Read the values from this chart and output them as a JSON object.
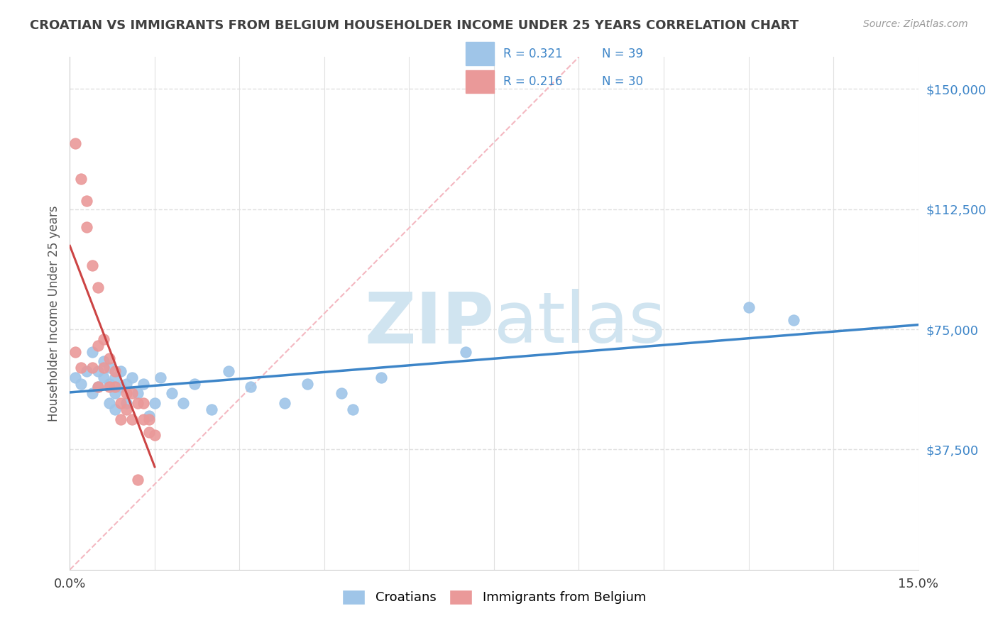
{
  "title": "CROATIAN VS IMMIGRANTS FROM BELGIUM HOUSEHOLDER INCOME UNDER 25 YEARS CORRELATION CHART",
  "source": "Source: ZipAtlas.com",
  "ylabel": "Householder Income Under 25 years",
  "xmin": 0.0,
  "xmax": 0.15,
  "ymin": 0,
  "ymax": 160000,
  "ytick_vals": [
    37500,
    75000,
    112500,
    150000
  ],
  "ytick_labels": [
    "$37,500",
    "$75,000",
    "$112,500",
    "$150,000"
  ],
  "croatian_R": "0.321",
  "croatian_N": "39",
  "belgium_R": "0.216",
  "belgium_N": "30",
  "blue_dot_color": "#9fc5e8",
  "pink_dot_color": "#ea9999",
  "blue_line_color": "#3d85c8",
  "pink_line_color": "#cc4444",
  "diag_line_color": "#f4b8c1",
  "tick_label_color": "#3d85c8",
  "title_color": "#404040",
  "source_color": "#999999",
  "legend_text_color": "#3d85c8",
  "legend_N_color": "#3d85c8",
  "watermark_color": "#d0e4f0",
  "grid_color": "#e0e0e0",
  "blue_scatter_x": [
    0.001,
    0.002,
    0.003,
    0.004,
    0.004,
    0.005,
    0.005,
    0.006,
    0.006,
    0.007,
    0.007,
    0.007,
    0.008,
    0.008,
    0.008,
    0.009,
    0.009,
    0.01,
    0.01,
    0.011,
    0.012,
    0.013,
    0.014,
    0.015,
    0.016,
    0.018,
    0.02,
    0.022,
    0.025,
    0.028,
    0.032,
    0.038,
    0.042,
    0.048,
    0.05,
    0.055,
    0.07,
    0.12,
    0.128
  ],
  "blue_scatter_y": [
    60000,
    58000,
    62000,
    55000,
    68000,
    62000,
    57000,
    65000,
    60000,
    63000,
    58000,
    52000,
    60000,
    55000,
    50000,
    62000,
    57000,
    58000,
    52000,
    60000,
    55000,
    58000,
    48000,
    52000,
    60000,
    55000,
    52000,
    58000,
    50000,
    62000,
    57000,
    52000,
    58000,
    55000,
    50000,
    60000,
    68000,
    82000,
    78000
  ],
  "pink_scatter_x": [
    0.001,
    0.001,
    0.002,
    0.002,
    0.003,
    0.003,
    0.004,
    0.004,
    0.005,
    0.005,
    0.005,
    0.006,
    0.006,
    0.007,
    0.007,
    0.008,
    0.008,
    0.009,
    0.009,
    0.01,
    0.01,
    0.011,
    0.011,
    0.012,
    0.012,
    0.013,
    0.013,
    0.014,
    0.014,
    0.015
  ],
  "pink_scatter_y": [
    133000,
    68000,
    122000,
    63000,
    115000,
    107000,
    95000,
    63000,
    88000,
    70000,
    57000,
    72000,
    63000,
    66000,
    57000,
    62000,
    57000,
    52000,
    47000,
    55000,
    50000,
    55000,
    47000,
    52000,
    28000,
    52000,
    47000,
    47000,
    43000,
    42000
  ]
}
